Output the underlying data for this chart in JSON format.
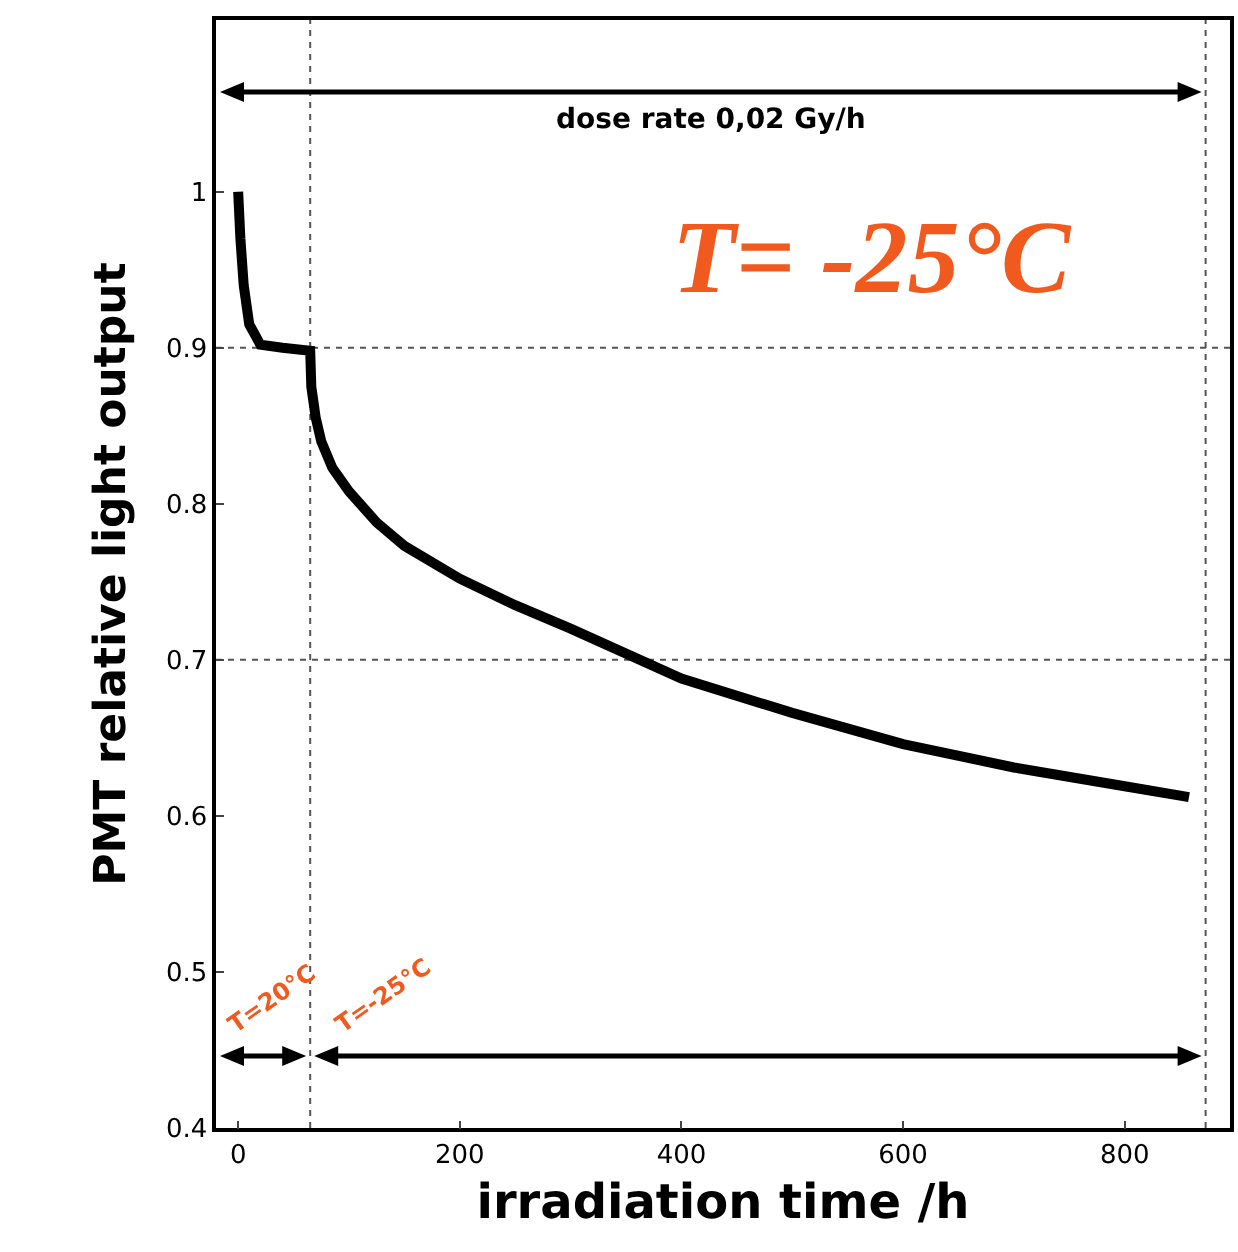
{
  "chart_data": {
    "type": "line",
    "xlabel": "irradiation time /h",
    "ylabel": "PMT relative light output",
    "x": [
      0,
      2,
      5,
      10,
      20,
      40,
      65,
      66,
      70,
      75,
      85,
      100,
      125,
      150,
      200,
      250,
      300,
      400,
      500,
      600,
      700,
      800,
      858
    ],
    "series": [
      {
        "color": "#000000",
        "values": [
          1.0,
          0.97,
          0.94,
          0.915,
          0.902,
          0.9,
          0.898,
          0.875,
          0.855,
          0.84,
          0.823,
          0.808,
          0.788,
          0.773,
          0.752,
          0.735,
          0.72,
          0.688,
          0.666,
          0.646,
          0.631,
          0.619,
          0.612
        ]
      }
    ],
    "xlim": [
      -20,
      895
    ],
    "ylim": [
      0.4,
      1.11
    ],
    "xticks": [
      0,
      200,
      400,
      600,
      800
    ],
    "yticks": [
      0.4,
      0.5,
      0.6,
      0.7,
      0.8,
      0.9,
      1
    ],
    "line_style": "solid",
    "ref_lines": [
      {
        "axis": "x",
        "value": 65,
        "line_style": "dotted"
      },
      {
        "axis": "x",
        "value": 873,
        "line_style": "dotted"
      },
      {
        "axis": "y",
        "value": 0.9,
        "line_style": "dotted"
      },
      {
        "axis": "y",
        "value": 0.7,
        "line_style": "dotted"
      }
    ],
    "annotations": [
      "dose rate 0,02 Gy/h",
      "T=20°C",
      "T=-25°C",
      "T= -25°C"
    ]
  }
}
